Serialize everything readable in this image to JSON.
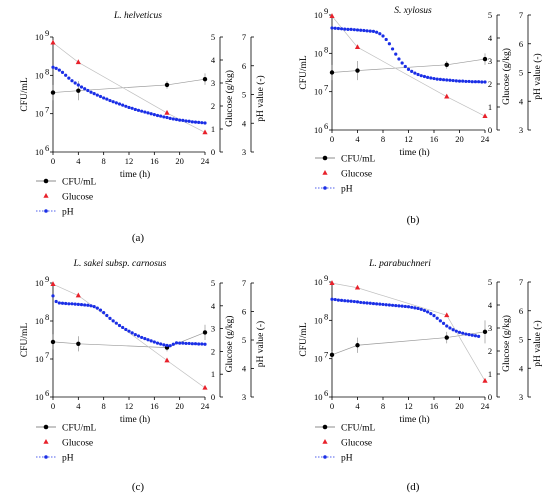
{
  "colors": {
    "cfu": "#000000",
    "glucose": "#e8202a",
    "ph": "#1a2ee6",
    "axis": "#000000",
    "cfu_line": "#9a9a9a",
    "glucose_line": "#c0c0c0"
  },
  "labels": {
    "left_axis": "CFU/mL",
    "glucose_axis": "Glucose (g/kg)",
    "ph_axis": "pH value (-)",
    "x_axis": "time (h)",
    "legend": [
      "CFU/mL",
      "Glucose",
      "pH"
    ],
    "panels": [
      "(a)",
      "(b)",
      "(c)",
      "(d)"
    ],
    "x_ticks": [
      "0",
      "4",
      "8",
      "12",
      "16",
      "20",
      "24"
    ],
    "cfu_ticks": [
      "10",
      "10",
      "10",
      "10"
    ],
    "cfu_exps": [
      "6",
      "7",
      "8",
      "9"
    ],
    "glucose_ticks": [
      "0",
      "1",
      "2",
      "3",
      "4",
      "5"
    ],
    "ph_ticks": [
      "3",
      "4",
      "5",
      "6",
      "7"
    ]
  },
  "chart_data": [
    {
      "type": "line",
      "title": "L. helveticus",
      "xlabel": "time (h)",
      "ylabel": "CFU/mL",
      "xlim": [
        0,
        24
      ],
      "ylim_log10_cfu": [
        6,
        9
      ],
      "ylim_glucose": [
        0,
        5
      ],
      "ylim_ph": [
        3,
        7
      ],
      "series": [
        {
          "name": "CFU/mL",
          "axis": "left",
          "x": [
            0,
            4,
            18,
            24
          ],
          "log10_y": [
            7.55,
            7.6,
            7.75,
            7.9
          ],
          "error_log10": [
            0.2,
            0.25,
            0.1,
            0.15
          ]
        },
        {
          "name": "Glucose",
          "axis": "right-inner",
          "x": [
            0,
            4,
            18,
            24
          ],
          "y": [
            4.75,
            3.9,
            1.7,
            0.85
          ]
        },
        {
          "name": "pH",
          "axis": "right-outer",
          "x": [
            0,
            0.5,
            1,
            1.5,
            2,
            2.5,
            3,
            3.5,
            4,
            4.5,
            5,
            5.5,
            6,
            6.5,
            7,
            7.5,
            8,
            8.5,
            9,
            9.5,
            10,
            10.5,
            11,
            11.5,
            12,
            12.5,
            13,
            13.5,
            14,
            14.5,
            15,
            15.5,
            16,
            16.5,
            17,
            17.5,
            18,
            18.5,
            19,
            19.5,
            20,
            20.5,
            21,
            21.5,
            22,
            22.5,
            23,
            23.5,
            24
          ],
          "y": [
            5.95,
            5.91,
            5.85,
            5.77,
            5.67,
            5.57,
            5.48,
            5.4,
            5.33,
            5.26,
            5.2,
            5.14,
            5.08,
            5.03,
            4.98,
            4.93,
            4.88,
            4.84,
            4.79,
            4.75,
            4.71,
            4.67,
            4.63,
            4.59,
            4.55,
            4.52,
            4.48,
            4.45,
            4.42,
            4.39,
            4.36,
            4.33,
            4.3,
            4.27,
            4.25,
            4.22,
            4.2,
            4.17,
            4.15,
            4.13,
            4.11,
            4.1,
            4.08,
            4.07,
            4.05,
            4.04,
            4.03,
            4.02,
            4.01
          ]
        }
      ]
    },
    {
      "type": "line",
      "title": "S. xylosus",
      "xlabel": "time (h)",
      "ylabel": "CFU/mL",
      "xlim": [
        0,
        24
      ],
      "ylim_log10_cfu": [
        6,
        9
      ],
      "ylim_glucose": [
        0,
        5
      ],
      "ylim_ph": [
        3,
        7
      ],
      "series": [
        {
          "name": "CFU/mL",
          "axis": "left",
          "x": [
            0,
            4,
            18,
            24
          ],
          "log10_y": [
            7.5,
            7.55,
            7.7,
            7.85
          ],
          "error_log10": [
            0.2,
            0.25,
            0.1,
            0.15
          ]
        },
        {
          "name": "Glucose",
          "axis": "right-inner",
          "x": [
            0,
            4,
            18,
            24
          ],
          "y": [
            4.95,
            3.6,
            1.45,
            0.6
          ]
        },
        {
          "name": "pH",
          "axis": "right-outer",
          "x": [
            0,
            0.5,
            1,
            1.5,
            2,
            2.5,
            3,
            3.5,
            4,
            4.5,
            5,
            5.5,
            6,
            6.5,
            7,
            7.5,
            8,
            8.5,
            9,
            9.5,
            10,
            10.5,
            11,
            11.5,
            12,
            12.5,
            13,
            13.5,
            14,
            14.5,
            15,
            15.5,
            16,
            16.5,
            17,
            17.5,
            18,
            18.5,
            19,
            19.5,
            20,
            20.5,
            21,
            21.5,
            22,
            22.5,
            23,
            23.5,
            24
          ],
          "y": [
            6.55,
            6.54,
            6.53,
            6.52,
            6.51,
            6.5,
            6.5,
            6.49,
            6.48,
            6.47,
            6.46,
            6.45,
            6.44,
            6.43,
            6.4,
            6.35,
            6.27,
            6.15,
            6.0,
            5.82,
            5.64,
            5.47,
            5.33,
            5.21,
            5.11,
            5.04,
            4.98,
            4.93,
            4.89,
            4.86,
            4.83,
            4.81,
            4.79,
            4.77,
            4.76,
            4.75,
            4.74,
            4.73,
            4.72,
            4.71,
            4.7,
            4.7,
            4.69,
            4.69,
            4.68,
            4.68,
            4.68,
            4.67,
            4.67
          ]
        }
      ]
    },
    {
      "type": "line",
      "title": "L. sakei subsp. carnosus",
      "xlabel": "time (h)",
      "ylabel": "CFU/mL",
      "xlim": [
        0,
        24
      ],
      "ylim_log10_cfu": [
        6,
        9
      ],
      "ylim_glucose": [
        0,
        5
      ],
      "ylim_ph": [
        3,
        7
      ],
      "series": [
        {
          "name": "CFU/mL",
          "axis": "left",
          "x": [
            0,
            4,
            18,
            24
          ],
          "log10_y": [
            7.45,
            7.4,
            7.3,
            7.7
          ],
          "error_log10": [
            0.2,
            0.2,
            0.1,
            0.2
          ]
        },
        {
          "name": "Glucose",
          "axis": "right-inner",
          "x": [
            0,
            4,
            18,
            24
          ],
          "y": [
            4.95,
            4.45,
            1.6,
            0.4
          ]
        },
        {
          "name": "pH",
          "axis": "right-outer",
          "x": [
            0,
            0.5,
            1,
            1.5,
            2,
            2.5,
            3,
            3.5,
            4,
            4.5,
            5,
            5.5,
            6,
            6.5,
            7,
            7.5,
            8,
            8.5,
            9,
            9.5,
            10,
            10.5,
            11,
            11.5,
            12,
            12.5,
            13,
            13.5,
            14,
            14.5,
            15,
            15.5,
            16,
            16.5,
            17,
            17.5,
            18,
            18.5,
            19,
            19.5,
            20,
            20.5,
            21,
            21.5,
            22,
            22.5,
            23,
            23.5,
            24
          ],
          "y": [
            6.55,
            6.35,
            6.3,
            6.29,
            6.28,
            6.27,
            6.27,
            6.26,
            6.25,
            6.24,
            6.23,
            6.22,
            6.2,
            6.17,
            6.12,
            6.05,
            5.96,
            5.86,
            5.76,
            5.67,
            5.59,
            5.51,
            5.44,
            5.37,
            5.31,
            5.25,
            5.19,
            5.14,
            5.09,
            5.05,
            5.01,
            4.97,
            4.93,
            4.89,
            4.86,
            4.83,
            4.81,
            4.8,
            4.85,
            4.9,
            4.89,
            4.89,
            4.88,
            4.88,
            4.87,
            4.87,
            4.86,
            4.86,
            4.85
          ]
        }
      ]
    },
    {
      "type": "line",
      "title": "L. parabuchneri",
      "xlabel": "time (h)",
      "ylabel": "CFU/mL",
      "xlim": [
        0,
        24
      ],
      "ylim_log10_cfu": [
        6,
        9
      ],
      "ylim_glucose": [
        0,
        5
      ],
      "ylim_ph": [
        3,
        7
      ],
      "series": [
        {
          "name": "CFU/mL",
          "axis": "left",
          "x": [
            0,
            4,
            18,
            24
          ],
          "log10_y": [
            7.1,
            7.35,
            7.55,
            7.7
          ],
          "error_log10": [
            0.1,
            0.2,
            0.15,
            0.3
          ]
        },
        {
          "name": "Glucose",
          "axis": "right-inner",
          "x": [
            0,
            4,
            18,
            24
          ],
          "y": [
            4.95,
            4.75,
            3.55,
            0.7
          ]
        },
        {
          "name": "pH",
          "axis": "right-outer",
          "x": [
            0,
            0.5,
            1,
            1.5,
            2,
            2.5,
            3,
            3.5,
            4,
            4.5,
            5,
            5.5,
            6,
            6.5,
            7,
            7.5,
            8,
            8.5,
            9,
            9.5,
            10,
            10.5,
            11,
            11.5,
            12,
            12.5,
            13,
            13.5,
            14,
            14.5,
            15,
            15.5,
            16,
            16.5,
            17,
            17.5,
            18,
            18.5,
            19,
            19.5,
            20,
            20.5,
            21,
            21.5,
            22,
            22.5,
            23
          ],
          "y": [
            6.4,
            6.39,
            6.37,
            6.36,
            6.35,
            6.34,
            6.33,
            6.32,
            6.31,
            6.29,
            6.28,
            6.27,
            6.26,
            6.25,
            6.24,
            6.23,
            6.22,
            6.21,
            6.2,
            6.19,
            6.18,
            6.17,
            6.16,
            6.15,
            6.14,
            6.12,
            6.1,
            6.08,
            6.05,
            6.01,
            5.96,
            5.9,
            5.83,
            5.74,
            5.65,
            5.56,
            5.47,
            5.4,
            5.34,
            5.29,
            5.25,
            5.22,
            5.19,
            5.17,
            5.15,
            5.13,
            5.11
          ]
        }
      ]
    }
  ]
}
